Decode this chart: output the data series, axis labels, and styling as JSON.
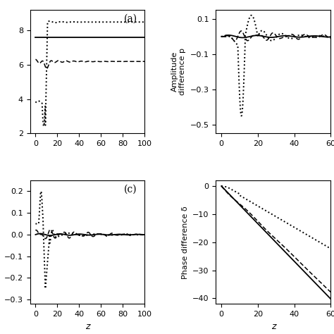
{
  "panel_a": {
    "label": "(a)",
    "xlim": [
      -5,
      100
    ],
    "ylim": [
      2,
      9.2
    ],
    "yticks": [
      2,
      4,
      6,
      8
    ],
    "xticks": [
      0,
      20,
      40,
      60,
      80,
      100
    ]
  },
  "panel_b": {
    "ylabel": "Amplitude\ndifference p",
    "xlim": [
      -3,
      60
    ],
    "ylim": [
      -0.55,
      0.15
    ],
    "yticks": [
      0.1,
      -0.1,
      -0.3,
      -0.5
    ],
    "xticks": [
      0,
      20,
      40,
      60
    ]
  },
  "panel_c": {
    "label": "(c)",
    "xlim": [
      -5,
      100
    ],
    "ylim": [
      -0.32,
      0.25
    ],
    "yticks": [
      0.2,
      0.1,
      0.0,
      -0.1,
      -0.2,
      -0.3
    ],
    "xticks": [
      0,
      20,
      40,
      60,
      80,
      100
    ],
    "xlabel": "z"
  },
  "panel_d": {
    "ylabel": "Phase difference δ",
    "xlim": [
      -3,
      60
    ],
    "ylim": [
      -42,
      2
    ],
    "yticks": [
      0,
      -10,
      -20,
      -30,
      -40
    ],
    "xticks": [
      0,
      20,
      40,
      60
    ],
    "xlabel": "z"
  },
  "line_styles": {
    "solid": {
      "ls": "-",
      "lw": 1.3,
      "color": "black"
    },
    "dashed": {
      "ls": "--",
      "lw": 1.1,
      "color": "black",
      "dashes": [
        4,
        2
      ]
    },
    "dotted": {
      "ls": ":",
      "lw": 1.4,
      "color": "black"
    }
  }
}
